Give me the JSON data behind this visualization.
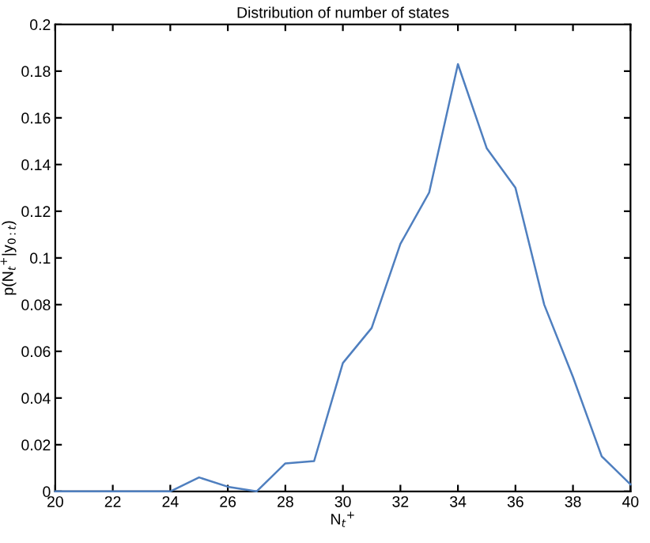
{
  "chart_data": {
    "type": "line",
    "title": "Distribution of number of states",
    "xlabel": "N$_{t}$$^{+}$",
    "ylabel": "p(N$_{t}$$^{+}$|y$_{0:t}$)",
    "x": [
      20,
      21,
      22,
      23,
      24,
      25,
      26,
      27,
      28,
      29,
      30,
      31,
      32,
      33,
      34,
      35,
      36,
      37,
      38,
      39,
      40
    ],
    "series": [
      {
        "color": "#4f7fbf",
        "values": [
          0,
          0,
          0,
          0,
          0,
          0.006,
          0.002,
          0,
          0.012,
          0.013,
          0.055,
          0.07,
          0.106,
          0.128,
          0.183,
          0.147,
          0.13,
          0.08,
          0.049,
          0.015,
          0.003
        ]
      }
    ],
    "xlim": [
      20,
      40
    ],
    "xticks": [
      20,
      22,
      24,
      26,
      28,
      30,
      32,
      34,
      36,
      38,
      40
    ],
    "ylim": [
      0,
      0.2
    ],
    "yticks": [
      0,
      0.02,
      0.04,
      0.06,
      0.08,
      0.1,
      0.12,
      0.14,
      0.16,
      0.18,
      0.2
    ],
    "grid": false,
    "marker": "none",
    "line_style": "solid"
  }
}
